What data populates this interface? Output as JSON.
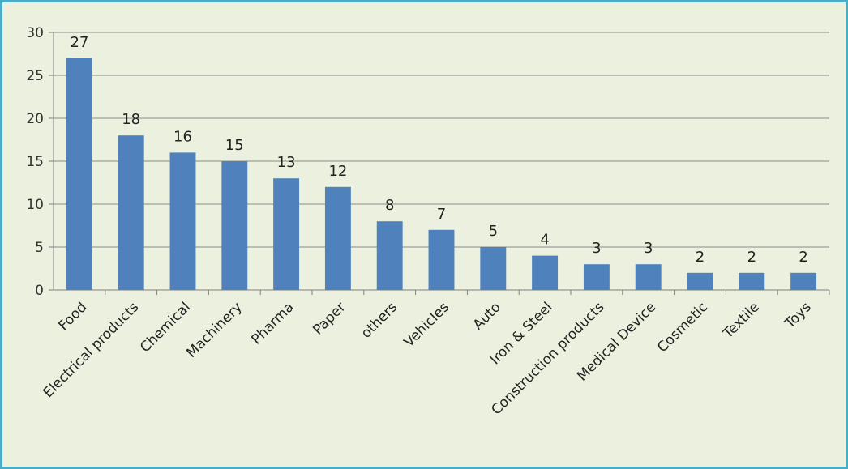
{
  "chart_data": {
    "type": "bar",
    "title": "",
    "xlabel": "",
    "ylabel": "",
    "ylim": [
      0,
      30
    ],
    "yticks": [
      0,
      5,
      10,
      15,
      20,
      25,
      30
    ],
    "grid": true,
    "legend": "none",
    "categories": [
      "Food",
      "Electrical products",
      "Chemical",
      "Machinery",
      "Pharma",
      "Paper",
      "others",
      "Vehicles",
      "Auto",
      "Iron & Steel",
      "Construction products",
      "Medical Device",
      "Cosmetic",
      "Textile",
      "Toys"
    ],
    "values": [
      27,
      18,
      16,
      15,
      13,
      12,
      8,
      7,
      5,
      4,
      3,
      3,
      2,
      2,
      2
    ],
    "bar_color": "#4F81BD",
    "background_color": "#EBF1DE",
    "border_color": "#4BACC6",
    "gridline_color": "#8C8C8C"
  }
}
